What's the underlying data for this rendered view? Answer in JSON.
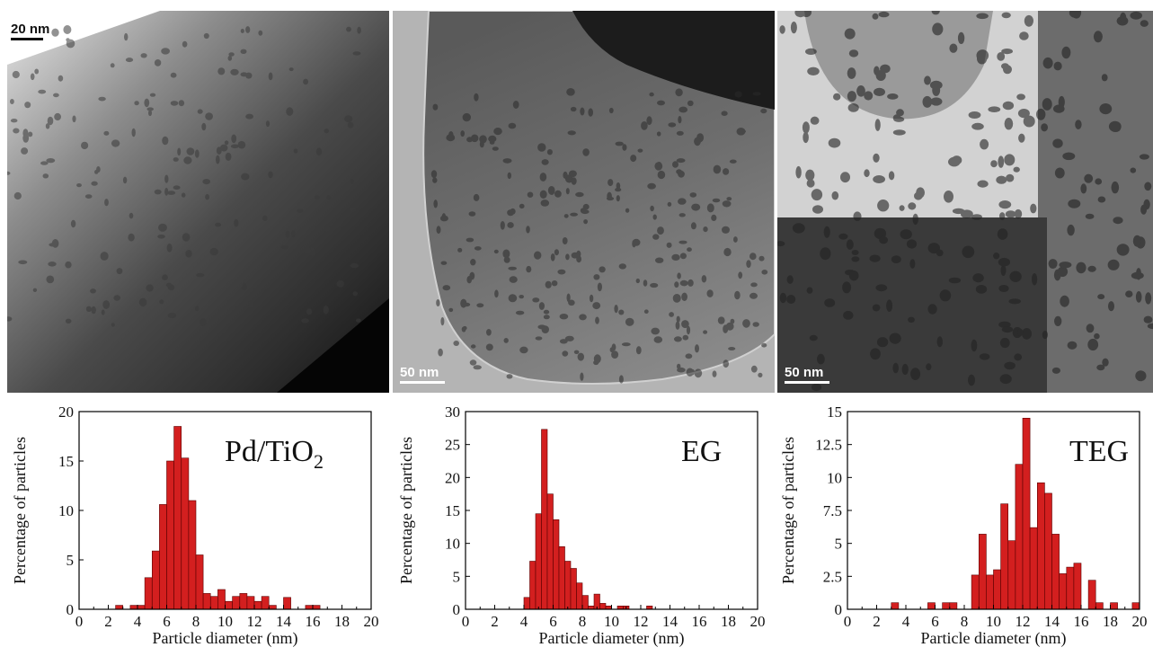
{
  "micrographs": [
    {
      "id": "pd-tio2",
      "scale_label": "20 nm"
    },
    {
      "id": "eg",
      "scale_label": "50 nm"
    },
    {
      "id": "teg",
      "scale_label": "50 nm"
    }
  ],
  "chart_data": [
    {
      "type": "bar",
      "title": "Pd/TiO2",
      "title_main": "Pd/TiO",
      "title_sub": "2",
      "xlabel": "Particle diameter (nm)",
      "ylabel": "Percentage of particles",
      "xlim": [
        0,
        20
      ],
      "ylim": [
        0,
        20
      ],
      "xticks": [
        0,
        2,
        4,
        6,
        8,
        10,
        12,
        14,
        16,
        18,
        20
      ],
      "yticks": [
        0,
        5,
        10,
        15,
        20
      ],
      "ytick_labels": [
        "0",
        "5",
        "10",
        "15",
        "20"
      ],
      "bin_width": 0.5,
      "color": "#d31f1f",
      "x": [
        2.5,
        3.5,
        4.0,
        4.5,
        5.0,
        5.5,
        6.0,
        6.5,
        7.0,
        7.5,
        8.0,
        8.5,
        9.0,
        9.5,
        10.0,
        10.5,
        11.0,
        11.5,
        12.0,
        12.5,
        13.0,
        14.0,
        15.5,
        16.0
      ],
      "values": [
        0.4,
        0.4,
        0.4,
        3.2,
        5.9,
        10.6,
        15.0,
        18.5,
        15.3,
        11.0,
        5.5,
        1.6,
        1.3,
        2.0,
        0.8,
        1.3,
        1.6,
        1.3,
        0.8,
        1.3,
        0.4,
        1.2,
        0.4,
        0.4
      ]
    },
    {
      "type": "bar",
      "title": "EG",
      "xlabel": "Particle diameter (nm)",
      "ylabel": "Percentage of particles",
      "xlim": [
        0,
        20
      ],
      "ylim": [
        0,
        30
      ],
      "xticks": [
        0,
        2,
        4,
        6,
        8,
        10,
        12,
        14,
        16,
        18,
        20
      ],
      "yticks": [
        0,
        5,
        10,
        15,
        20,
        25,
        30
      ],
      "ytick_labels": [
        "0",
        "5",
        "10",
        "15",
        "20",
        "25",
        "30"
      ],
      "bin_width": 0.4,
      "color": "#d31f1f",
      "x": [
        4.0,
        4.4,
        4.8,
        5.2,
        5.6,
        6.0,
        6.4,
        6.8,
        7.2,
        7.6,
        8.0,
        8.4,
        8.8,
        9.2,
        9.6,
        10.4,
        10.8,
        12.4
      ],
      "values": [
        1.8,
        7.3,
        14.5,
        27.3,
        17.5,
        13.6,
        9.5,
        7.3,
        6.2,
        4.0,
        2.1,
        0.5,
        2.3,
        0.9,
        0.5,
        0.5,
        0.5,
        0.5
      ]
    },
    {
      "type": "bar",
      "title": "TEG",
      "xlabel": "Particle diameter (nm)",
      "ylabel": "Percentage of particles",
      "xlim": [
        0,
        20
      ],
      "ylim": [
        0,
        15
      ],
      "xticks": [
        0,
        2,
        4,
        6,
        8,
        10,
        12,
        14,
        16,
        18,
        20
      ],
      "yticks": [
        0,
        2.5,
        5,
        7.5,
        10,
        12.5,
        15
      ],
      "ytick_labels": [
        "0",
        "2.5",
        "5",
        "7.5",
        "10",
        "12.5",
        "15"
      ],
      "bin_width": 0.5,
      "color": "#d31f1f",
      "x": [
        3.0,
        5.5,
        6.5,
        7.0,
        8.5,
        9.0,
        9.5,
        10.0,
        10.5,
        11.0,
        11.5,
        12.0,
        12.5,
        13.0,
        13.5,
        14.0,
        14.5,
        15.0,
        15.5,
        16.5,
        17.0,
        18.0,
        19.5
      ],
      "values": [
        0.5,
        0.5,
        0.5,
        0.5,
        2.6,
        5.7,
        2.6,
        3.0,
        8.0,
        5.2,
        11.0,
        14.5,
        6.2,
        9.6,
        8.8,
        5.7,
        2.7,
        3.2,
        3.5,
        2.2,
        0.5,
        0.5,
        0.5
      ]
    }
  ]
}
